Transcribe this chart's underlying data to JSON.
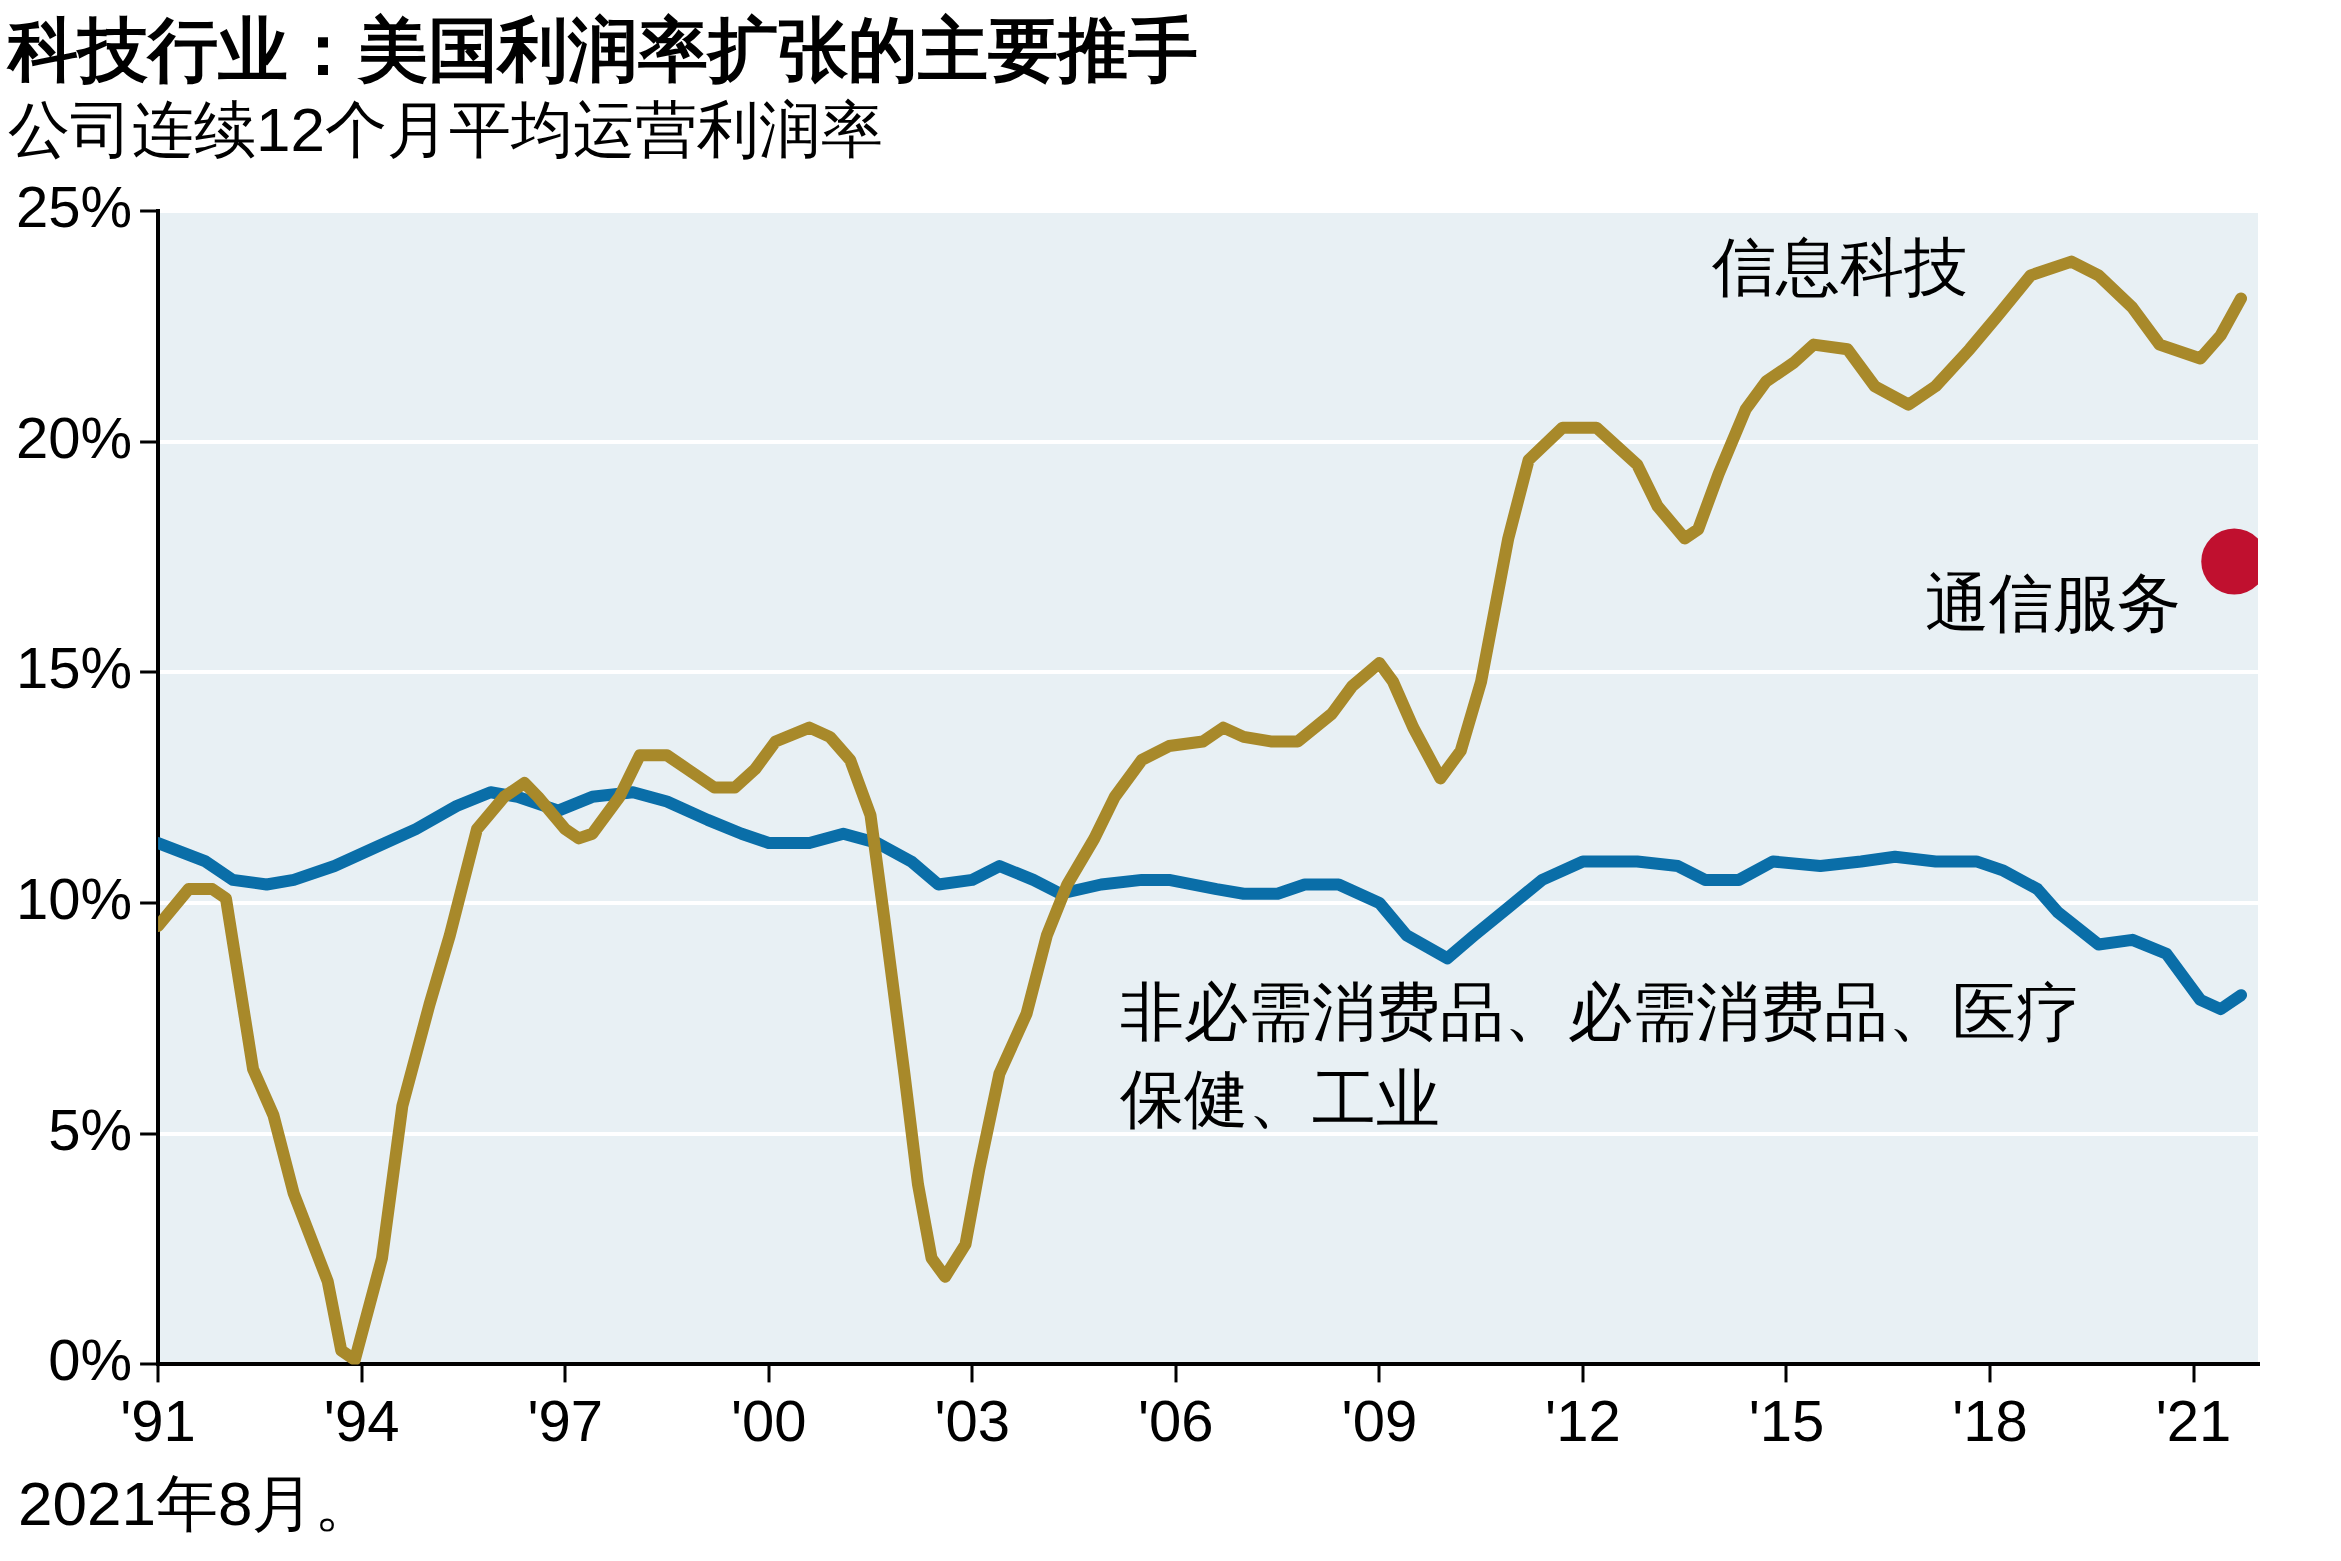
{
  "chart_data": {
    "type": "line",
    "title": "科技行业：美国利润率扩张的主要推手",
    "subtitle": "公司连续12个月平均运营利润率",
    "annotations": [
      "2021年8月。"
    ],
    "xlim": [
      1991,
      2021.95
    ],
    "xticks": [
      {
        "value": 1991,
        "label": "'91"
      },
      {
        "value": 1994,
        "label": "'94"
      },
      {
        "value": 1997,
        "label": "'97"
      },
      {
        "value": 2000,
        "label": "'00"
      },
      {
        "value": 2003,
        "label": "'03"
      },
      {
        "value": 2006,
        "label": "'06"
      },
      {
        "value": 2009,
        "label": "'09"
      },
      {
        "value": 2012,
        "label": "'12"
      },
      {
        "value": 2015,
        "label": "'15"
      },
      {
        "value": 2018,
        "label": "'18"
      },
      {
        "value": 2021,
        "label": "'21"
      }
    ],
    "ylim": [
      0,
      25
    ],
    "yticks": [
      {
        "value": 0,
        "label": "0%"
      },
      {
        "value": 5,
        "label": "5%"
      },
      {
        "value": 10,
        "label": "10%"
      },
      {
        "value": 15,
        "label": "15%"
      },
      {
        "value": 20,
        "label": "20%"
      },
      {
        "value": 25,
        "label": "25%"
      }
    ],
    "grid": "y",
    "legend": false,
    "marker": "none",
    "line_style": "solid",
    "series": [
      {
        "name": "信息科技",
        "color": "#a8892a",
        "x": [
          1991.0,
          1991.45,
          1991.8,
          1992.0,
          1992.4,
          1992.7,
          1993.0,
          1993.5,
          1993.7,
          1993.9,
          1994.3,
          1994.6,
          1995.0,
          1995.3,
          1995.7,
          1996.1,
          1996.4,
          1996.6,
          1997.0,
          1997.2,
          1997.4,
          1997.8,
          1998.1,
          1998.5,
          1998.8,
          1999.2,
          1999.5,
          1999.8,
          2000.1,
          2000.6,
          2000.9,
          2001.2,
          2001.5,
          2001.7,
          2002.0,
          2002.2,
          2002.4,
          2002.6,
          2002.9,
          2003.1,
          2003.4,
          2003.8,
          2004.1,
          2004.4,
          2004.8,
          2005.1,
          2005.5,
          2005.9,
          2006.4,
          2006.7,
          2007.0,
          2007.4,
          2007.8,
          2008.3,
          2008.6,
          2009.0,
          2009.2,
          2009.5,
          2009.9,
          2010.2,
          2010.5,
          2010.9,
          2011.2,
          2011.7,
          2012.2,
          2012.8,
          2013.1,
          2013.5,
          2013.7,
          2014.0,
          2014.4,
          2014.7,
          2015.1,
          2015.4,
          2015.9,
          2016.3,
          2016.8,
          2017.2,
          2017.7,
          2018.1,
          2018.6,
          2019.2,
          2019.6,
          2020.1,
          2020.5,
          2021.1,
          2021.4,
          2021.7
        ],
        "values": [
          9.5,
          10.3,
          10.3,
          10.1,
          6.4,
          5.4,
          3.7,
          1.8,
          0.3,
          0.1,
          2.3,
          5.6,
          7.8,
          9.3,
          11.6,
          12.3,
          12.6,
          12.3,
          11.6,
          11.4,
          11.5,
          12.3,
          13.2,
          13.2,
          12.9,
          12.5,
          12.5,
          12.9,
          13.5,
          13.8,
          13.6,
          13.1,
          11.9,
          9.7,
          6.3,
          3.9,
          2.3,
          1.9,
          2.6,
          4.2,
          6.3,
          7.6,
          9.3,
          10.4,
          11.4,
          12.3,
          13.1,
          13.4,
          13.5,
          13.8,
          13.6,
          13.5,
          13.5,
          14.1,
          14.7,
          15.2,
          14.8,
          13.8,
          12.7,
          13.3,
          14.8,
          17.9,
          19.6,
          20.3,
          20.3,
          19.5,
          18.6,
          17.9,
          18.1,
          19.3,
          20.7,
          21.3,
          21.7,
          22.1,
          22.0,
          21.2,
          20.8,
          21.2,
          22.0,
          22.7,
          23.6,
          23.9,
          23.6,
          22.9,
          22.1,
          21.8,
          22.3,
          23.1
        ]
      },
      {
        "name": "非必需消费品、必需消费品、医疗保健、工业",
        "color": "#0a6ea8",
        "x": [
          1991.0,
          1991.7,
          1992.1,
          1992.6,
          1993.0,
          1993.6,
          1994.2,
          1994.8,
          1995.4,
          1995.9,
          1996.3,
          1996.9,
          1997.4,
          1998.0,
          1998.5,
          1999.1,
          1999.6,
          2000.0,
          2000.6,
          2001.1,
          2001.6,
          2002.1,
          2002.5,
          2003.0,
          2003.4,
          2003.9,
          2004.3,
          2004.9,
          2005.5,
          2005.9,
          2006.6,
          2007.0,
          2007.5,
          2007.9,
          2008.4,
          2009.0,
          2009.4,
          2010.0,
          2010.4,
          2010.9,
          2011.4,
          2012.0,
          2012.8,
          2013.4,
          2013.8,
          2014.3,
          2014.8,
          2015.5,
          2016.1,
          2016.6,
          2017.2,
          2017.8,
          2018.2,
          2018.7,
          2019.0,
          2019.6,
          2020.1,
          2020.6,
          2021.1,
          2021.4,
          2021.7
        ],
        "values": [
          11.3,
          10.9,
          10.5,
          10.4,
          10.5,
          10.8,
          11.2,
          11.6,
          12.1,
          12.4,
          12.3,
          12.0,
          12.3,
          12.4,
          12.2,
          11.8,
          11.5,
          11.3,
          11.3,
          11.5,
          11.3,
          10.9,
          10.4,
          10.5,
          10.8,
          10.5,
          10.2,
          10.4,
          10.5,
          10.5,
          10.3,
          10.2,
          10.2,
          10.4,
          10.4,
          10.0,
          9.3,
          8.8,
          9.3,
          9.9,
          10.5,
          10.9,
          10.9,
          10.8,
          10.5,
          10.5,
          10.9,
          10.8,
          10.9,
          11.0,
          10.9,
          10.9,
          10.7,
          10.3,
          9.8,
          9.1,
          9.2,
          8.9,
          7.9,
          7.7,
          8.0
        ]
      },
      {
        "name": "通信服务",
        "type": "scatter",
        "marker": "circle",
        "color": "#c0102f",
        "x": [
          2021.6
        ],
        "values": [
          17.4
        ]
      }
    ]
  }
}
